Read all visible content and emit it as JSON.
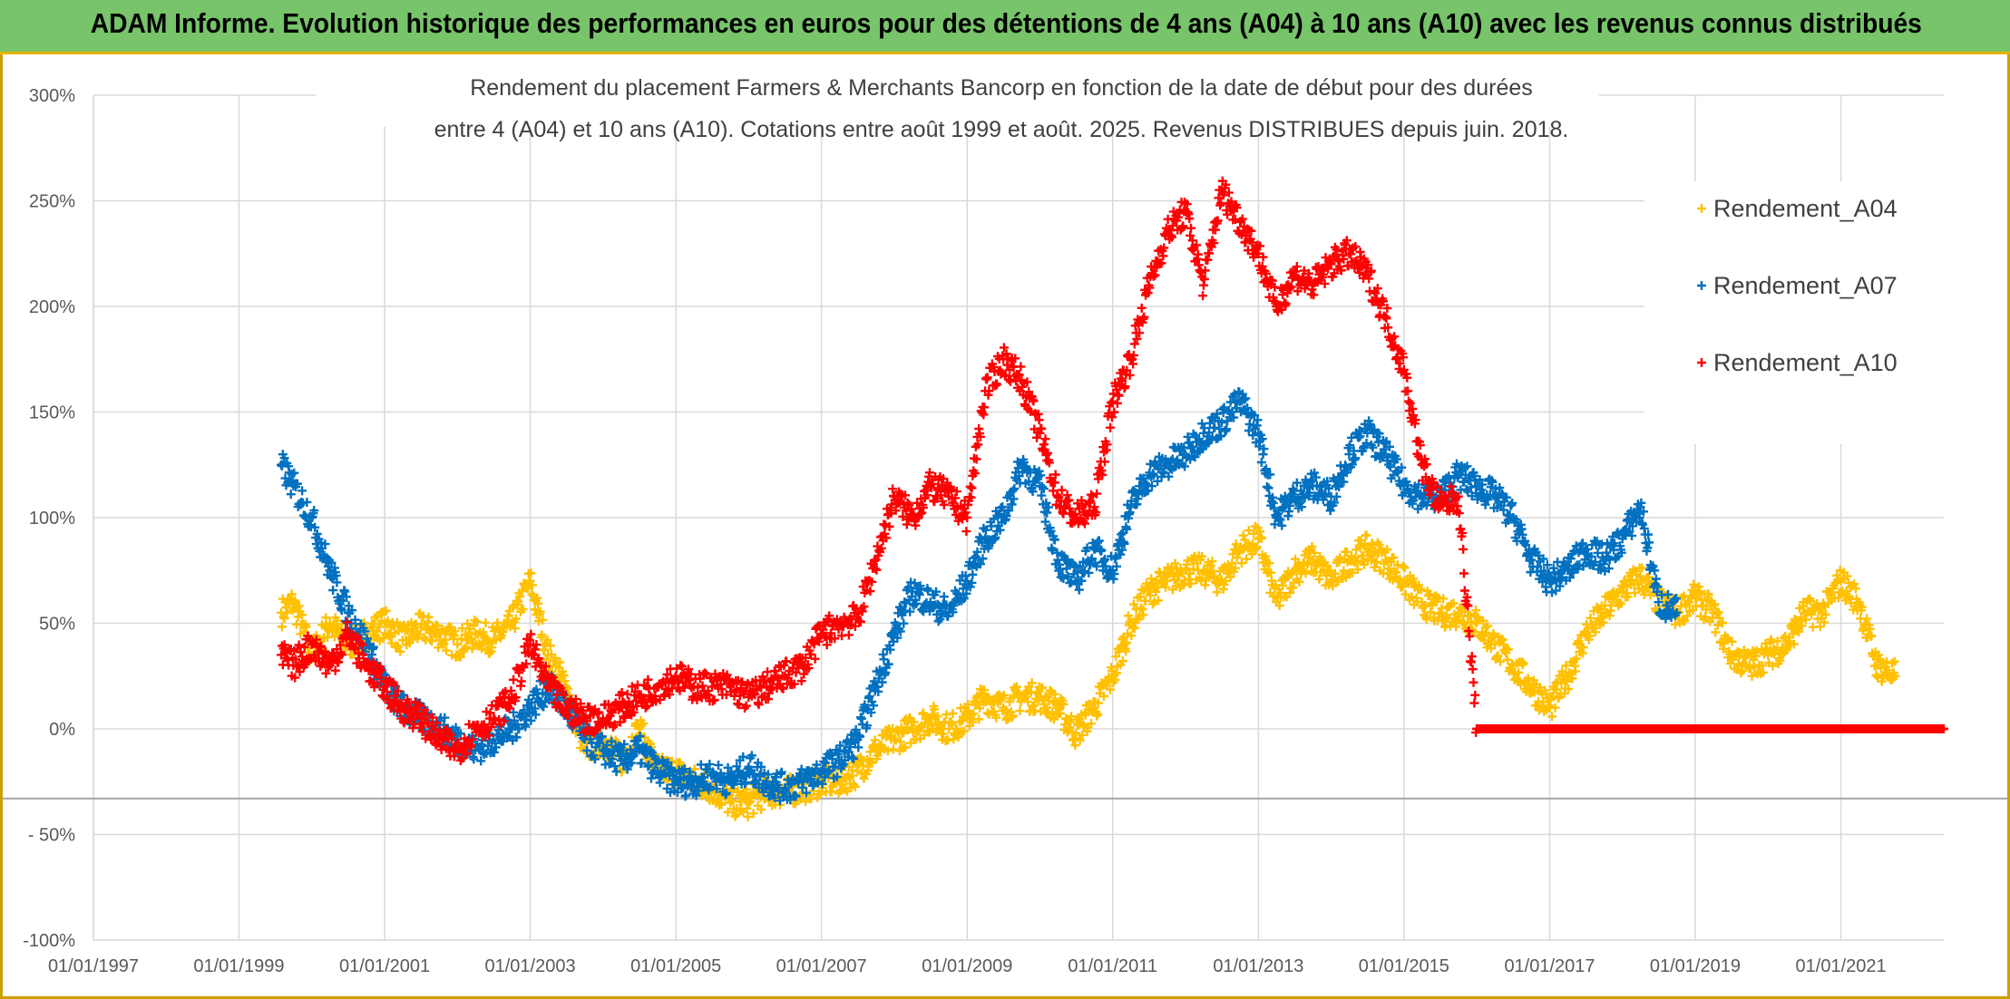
{
  "banner": {
    "title": "ADAM Informe. Evolution historique des performances en euros pour des détentions de 4 ans (A04) à 10 ans (A10) avec les revenus connus distribués"
  },
  "colors": {
    "banner_bg": "#77c46a",
    "A04": "#ffc000",
    "A07": "#0070c0",
    "A10": "#ff0000",
    "grid": "#d9d9d9",
    "axis_text": "#595959"
  },
  "chart_data": {
    "type": "scatter",
    "title_line1": "Rendement du placement Farmers & Merchants Bancorp en fonction de la date de début pour des durées",
    "title_line2": "entre 4 (A04) et 10 ans (A10). Cotations entre août 1999 et août. 2025. Revenus DISTRIBUES depuis juin. 2018.",
    "marker": "+",
    "legend_position": "top-right",
    "grid": true,
    "x_axis": {
      "type": "date",
      "range": [
        "1997-01-01",
        "2022-06-01"
      ],
      "tick_labels": [
        "01/01/1997",
        "01/01/1999",
        "01/01/2001",
        "01/01/2003",
        "01/01/2005",
        "01/01/2007",
        "01/01/2009",
        "01/01/2011",
        "01/01/2013",
        "01/01/2015",
        "01/01/2017",
        "01/01/2019",
        "01/01/2021"
      ]
    },
    "y_axis": {
      "range": [
        -100,
        300
      ],
      "unit": "%",
      "tick_values": [
        300,
        250,
        200,
        150,
        100,
        50,
        0,
        -50,
        -100
      ],
      "tick_labels": [
        "300%",
        "250%",
        "200%",
        "150%",
        "100%",
        "50%",
        "0%",
        "- 50%",
        "-100%"
      ]
    },
    "reference_line_y": -33,
    "series": [
      {
        "name": "Rendement_A04",
        "color": "#ffc000",
        "points": [
          [
            "1999-08-01",
            55
          ],
          [
            "1999-10-01",
            60
          ],
          [
            "2000-01-01",
            35
          ],
          [
            "2000-04-01",
            50
          ],
          [
            "2000-07-01",
            40
          ],
          [
            "2000-10-01",
            45
          ],
          [
            "2001-01-01",
            50
          ],
          [
            "2001-04-01",
            42
          ],
          [
            "2001-07-01",
            48
          ],
          [
            "2001-10-01",
            45
          ],
          [
            "2002-01-01",
            40
          ],
          [
            "2002-04-01",
            45
          ],
          [
            "2002-07-01",
            42
          ],
          [
            "2002-10-01",
            50
          ],
          [
            "2003-01-01",
            70
          ],
          [
            "2003-04-01",
            35
          ],
          [
            "2003-07-01",
            20
          ],
          [
            "2003-10-01",
            -10
          ],
          [
            "2004-01-01",
            -5
          ],
          [
            "2004-04-01",
            -15
          ],
          [
            "2004-07-01",
            0
          ],
          [
            "2004-10-01",
            -20
          ],
          [
            "2005-01-01",
            -20
          ],
          [
            "2005-04-01",
            -25
          ],
          [
            "2005-07-01",
            -28
          ],
          [
            "2005-10-01",
            -35
          ],
          [
            "2006-01-01",
            -35
          ],
          [
            "2006-04-01",
            -30
          ],
          [
            "2006-07-01",
            -30
          ],
          [
            "2006-10-01",
            -28
          ],
          [
            "2007-01-01",
            -25
          ],
          [
            "2007-04-01",
            -25
          ],
          [
            "2007-07-01",
            -20
          ],
          [
            "2007-10-01",
            -10
          ],
          [
            "2008-01-01",
            -5
          ],
          [
            "2008-04-01",
            0
          ],
          [
            "2008-07-01",
            5
          ],
          [
            "2008-10-01",
            0
          ],
          [
            "2009-01-01",
            5
          ],
          [
            "2009-04-01",
            15
          ],
          [
            "2009-07-01",
            10
          ],
          [
            "2009-10-01",
            15
          ],
          [
            "2010-01-01",
            15
          ],
          [
            "2010-04-01",
            10
          ],
          [
            "2010-07-01",
            -2
          ],
          [
            "2010-10-01",
            10
          ],
          [
            "2011-01-01",
            25
          ],
          [
            "2011-04-01",
            50
          ],
          [
            "2011-07-01",
            65
          ],
          [
            "2011-10-01",
            70
          ],
          [
            "2012-01-01",
            75
          ],
          [
            "2012-04-01",
            75
          ],
          [
            "2012-07-01",
            70
          ],
          [
            "2012-10-01",
            85
          ],
          [
            "2013-01-01",
            90
          ],
          [
            "2013-04-01",
            60
          ],
          [
            "2013-07-01",
            75
          ],
          [
            "2013-10-01",
            80
          ],
          [
            "2014-01-01",
            70
          ],
          [
            "2014-04-01",
            80
          ],
          [
            "2014-07-01",
            85
          ],
          [
            "2014-10-01",
            80
          ],
          [
            "2015-01-01",
            70
          ],
          [
            "2015-04-01",
            60
          ],
          [
            "2015-07-01",
            55
          ],
          [
            "2015-10-01",
            55
          ],
          [
            "2016-01-01",
            50
          ],
          [
            "2016-04-01",
            40
          ],
          [
            "2016-07-01",
            30
          ],
          [
            "2016-10-01",
            20
          ],
          [
            "2017-01-01",
            10
          ],
          [
            "2017-04-01",
            25
          ],
          [
            "2017-07-01",
            45
          ],
          [
            "2017-10-01",
            55
          ],
          [
            "2018-01-01",
            65
          ],
          [
            "2018-04-01",
            72
          ],
          [
            "2018-07-01",
            60
          ],
          [
            "2018-10-01",
            55
          ],
          [
            "2019-01-01",
            62
          ],
          [
            "2019-04-01",
            55
          ],
          [
            "2019-07-01",
            35
          ],
          [
            "2019-10-01",
            30
          ],
          [
            "2020-01-01",
            35
          ],
          [
            "2020-04-01",
            40
          ],
          [
            "2020-07-01",
            55
          ],
          [
            "2020-10-01",
            55
          ],
          [
            "2021-01-01",
            70
          ],
          [
            "2021-04-01",
            60
          ],
          [
            "2021-07-01",
            30
          ],
          [
            "2021-10-01",
            25
          ]
        ]
      },
      {
        "name": "Rendement_A07",
        "color": "#0070c0",
        "points": [
          [
            "1999-08-01",
            125
          ],
          [
            "1999-10-01",
            115
          ],
          [
            "2000-01-01",
            100
          ],
          [
            "2000-04-01",
            75
          ],
          [
            "2000-07-01",
            55
          ],
          [
            "2000-10-01",
            40
          ],
          [
            "2001-01-01",
            20
          ],
          [
            "2001-04-01",
            10
          ],
          [
            "2001-07-01",
            5
          ],
          [
            "2001-10-01",
            0
          ],
          [
            "2002-01-01",
            -5
          ],
          [
            "2002-04-01",
            -10
          ],
          [
            "2002-07-01",
            -5
          ],
          [
            "2002-10-01",
            0
          ],
          [
            "2003-01-01",
            10
          ],
          [
            "2003-04-01",
            20
          ],
          [
            "2003-07-01",
            10
          ],
          [
            "2003-10-01",
            -5
          ],
          [
            "2004-01-01",
            -10
          ],
          [
            "2004-04-01",
            -15
          ],
          [
            "2004-07-01",
            -10
          ],
          [
            "2004-10-01",
            -20
          ],
          [
            "2005-01-01",
            -25
          ],
          [
            "2005-04-01",
            -25
          ],
          [
            "2005-07-01",
            -22
          ],
          [
            "2005-10-01",
            -25
          ],
          [
            "2006-01-01",
            -18
          ],
          [
            "2006-04-01",
            -25
          ],
          [
            "2006-07-01",
            -28
          ],
          [
            "2006-10-01",
            -25
          ],
          [
            "2007-01-01",
            -20
          ],
          [
            "2007-04-01",
            -15
          ],
          [
            "2007-07-01",
            -5
          ],
          [
            "2007-10-01",
            20
          ],
          [
            "2008-01-01",
            45
          ],
          [
            "2008-04-01",
            65
          ],
          [
            "2008-07-01",
            60
          ],
          [
            "2008-10-01",
            55
          ],
          [
            "2009-01-01",
            70
          ],
          [
            "2009-04-01",
            90
          ],
          [
            "2009-07-01",
            100
          ],
          [
            "2009-10-01",
            125
          ],
          [
            "2010-01-01",
            115
          ],
          [
            "2010-04-01",
            80
          ],
          [
            "2010-07-01",
            70
          ],
          [
            "2010-10-01",
            85
          ],
          [
            "2011-01-01",
            75
          ],
          [
            "2011-04-01",
            105
          ],
          [
            "2011-07-01",
            120
          ],
          [
            "2011-10-01",
            125
          ],
          [
            "2012-01-01",
            130
          ],
          [
            "2012-04-01",
            140
          ],
          [
            "2012-07-01",
            145
          ],
          [
            "2012-10-01",
            155
          ],
          [
            "2013-01-01",
            140
          ],
          [
            "2013-04-01",
            100
          ],
          [
            "2013-07-01",
            110
          ],
          [
            "2013-10-01",
            115
          ],
          [
            "2014-01-01",
            110
          ],
          [
            "2014-04-01",
            130
          ],
          [
            "2014-07-01",
            140
          ],
          [
            "2014-10-01",
            130
          ],
          [
            "2015-01-01",
            115
          ],
          [
            "2015-04-01",
            110
          ],
          [
            "2015-07-01",
            110
          ],
          [
            "2015-10-01",
            120
          ],
          [
            "2016-01-01",
            115
          ],
          [
            "2016-04-01",
            110
          ],
          [
            "2016-07-01",
            100
          ],
          [
            "2016-10-01",
            80
          ],
          [
            "2017-01-01",
            70
          ],
          [
            "2017-04-01",
            75
          ],
          [
            "2017-07-01",
            85
          ],
          [
            "2017-10-01",
            80
          ],
          [
            "2018-01-01",
            90
          ],
          [
            "2018-04-01",
            105
          ],
          [
            "2018-07-01",
            60
          ],
          [
            "2018-10-01",
            55
          ]
        ]
      },
      {
        "name": "Rendement_A10",
        "color": "#ff0000",
        "points": [
          [
            "1999-08-01",
            35
          ],
          [
            "1999-10-01",
            30
          ],
          [
            "2000-01-01",
            40
          ],
          [
            "2000-04-01",
            30
          ],
          [
            "2000-07-01",
            45
          ],
          [
            "2000-10-01",
            30
          ],
          [
            "2001-01-01",
            20
          ],
          [
            "2001-04-01",
            10
          ],
          [
            "2001-07-01",
            5
          ],
          [
            "2001-10-01",
            -5
          ],
          [
            "2002-01-01",
            -10
          ],
          [
            "2002-04-01",
            0
          ],
          [
            "2002-07-01",
            5
          ],
          [
            "2002-10-01",
            15
          ],
          [
            "2003-01-01",
            40
          ],
          [
            "2003-04-01",
            20
          ],
          [
            "2003-07-01",
            10
          ],
          [
            "2003-10-01",
            5
          ],
          [
            "2004-01-01",
            5
          ],
          [
            "2004-04-01",
            10
          ],
          [
            "2004-07-01",
            15
          ],
          [
            "2004-10-01",
            20
          ],
          [
            "2005-01-01",
            25
          ],
          [
            "2005-04-01",
            20
          ],
          [
            "2005-07-01",
            20
          ],
          [
            "2005-10-01",
            20
          ],
          [
            "2006-01-01",
            15
          ],
          [
            "2006-04-01",
            20
          ],
          [
            "2006-07-01",
            25
          ],
          [
            "2006-10-01",
            30
          ],
          [
            "2007-01-01",
            45
          ],
          [
            "2007-04-01",
            50
          ],
          [
            "2007-07-01",
            52
          ],
          [
            "2007-10-01",
            80
          ],
          [
            "2008-01-01",
            110
          ],
          [
            "2008-04-01",
            100
          ],
          [
            "2008-07-01",
            115
          ],
          [
            "2008-10-01",
            110
          ],
          [
            "2009-01-01",
            100
          ],
          [
            "2009-04-01",
            160
          ],
          [
            "2009-07-01",
            175
          ],
          [
            "2009-10-01",
            165
          ],
          [
            "2010-01-01",
            140
          ],
          [
            "2010-04-01",
            110
          ],
          [
            "2010-07-01",
            100
          ],
          [
            "2010-10-01",
            105
          ],
          [
            "2011-01-01",
            155
          ],
          [
            "2011-04-01",
            175
          ],
          [
            "2011-07-01",
            210
          ],
          [
            "2011-10-01",
            235
          ],
          [
            "2012-01-01",
            245
          ],
          [
            "2012-04-01",
            210
          ],
          [
            "2012-07-01",
            255
          ],
          [
            "2012-10-01",
            240
          ],
          [
            "2013-01-01",
            225
          ],
          [
            "2013-04-01",
            200
          ],
          [
            "2013-07-01",
            215
          ],
          [
            "2013-10-01",
            210
          ],
          [
            "2014-01-01",
            220
          ],
          [
            "2014-04-01",
            225
          ],
          [
            "2014-07-01",
            215
          ],
          [
            "2014-10-01",
            195
          ],
          [
            "2015-01-01",
            170
          ],
          [
            "2015-04-01",
            125
          ],
          [
            "2015-07-01",
            105
          ],
          [
            "2015-10-01",
            110
          ],
          [
            "2016-01-01",
            0
          ],
          [
            "2016-07-01",
            0
          ],
          [
            "2017-01-01",
            0
          ],
          [
            "2017-07-01",
            0
          ],
          [
            "2018-01-01",
            0
          ],
          [
            "2018-07-01",
            0
          ],
          [
            "2019-01-01",
            0
          ],
          [
            "2019-07-01",
            0
          ],
          [
            "2020-01-01",
            0
          ],
          [
            "2020-07-01",
            0
          ],
          [
            "2021-01-01",
            0
          ],
          [
            "2021-07-01",
            0
          ],
          [
            "2022-01-01",
            0
          ],
          [
            "2022-06-01",
            0
          ]
        ]
      }
    ]
  }
}
